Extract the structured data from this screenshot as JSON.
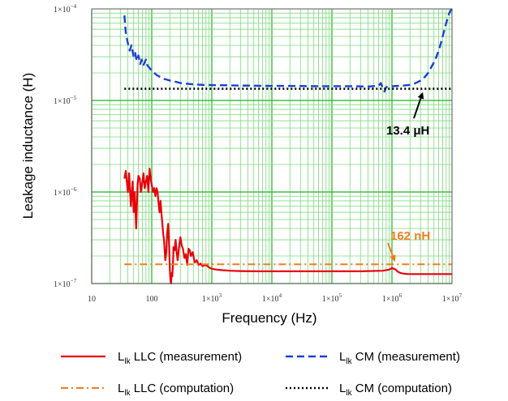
{
  "chart_data": {
    "type": "line",
    "x_scale": "log",
    "y_scale": "log",
    "xlabel": "Frequency (Hz)",
    "ylabel": "Leakage inductance (H)",
    "xlim": [
      10,
      10000000
    ],
    "ylim": [
      1e-07,
      0.0001
    ],
    "grid": true,
    "x_ticks": [
      {
        "value": 10,
        "label": "10",
        "mant": "",
        "exp": ""
      },
      {
        "value": 100,
        "label": "100",
        "mant": "",
        "exp": ""
      },
      {
        "value": 1000,
        "label": "",
        "mant": "1×10",
        "exp": "3"
      },
      {
        "value": 10000,
        "label": "",
        "mant": "1×10",
        "exp": "4"
      },
      {
        "value": 100000,
        "label": "",
        "mant": "1×10",
        "exp": "5"
      },
      {
        "value": 1000000,
        "label": "",
        "mant": "1×10",
        "exp": "6"
      },
      {
        "value": 10000000,
        "label": "",
        "mant": "1×10",
        "exp": "7"
      }
    ],
    "y_ticks": [
      {
        "value": 0.0001,
        "mant": "1×10",
        "exp": "−4"
      },
      {
        "value": 1e-05,
        "mant": "1×10",
        "exp": "−5"
      },
      {
        "value": 1e-06,
        "mant": "1×10",
        "exp": "−6"
      },
      {
        "value": 1e-07,
        "mant": "1×10",
        "exp": "−7"
      }
    ],
    "series": [
      {
        "name": "LLC (measurement)",
        "prefix": "L",
        "sub": "lk",
        "color": "#e8000b",
        "style": "solid",
        "x": [
          35,
          37,
          40,
          42,
          45,
          48,
          50,
          52,
          55,
          58,
          60,
          63,
          66,
          70,
          73,
          76,
          80,
          84,
          88,
          92,
          96,
          100,
          105,
          110,
          115,
          120,
          125,
          130,
          135,
          140,
          148,
          155,
          160,
          168,
          175,
          180,
          188,
          195,
          200,
          205,
          210,
          215,
          220,
          225,
          230,
          240,
          250,
          260,
          270,
          285,
          300,
          315,
          330,
          350,
          370,
          390,
          410,
          430,
          450,
          480,
          520,
          560,
          600,
          650,
          700,
          800,
          900,
          1000,
          1200,
          1500,
          2000,
          3000,
          5000,
          10000,
          30000,
          100000,
          300000,
          700000,
          900000,
          1000000,
          1150000,
          1250000,
          1400000,
          1600000,
          1800000,
          2000000,
          3000000,
          5000000,
          10000000
        ],
        "y": [
          1.4e-06,
          1.7e-06,
          1e-06,
          1.6e-06,
          7e-07,
          1.3e-06,
          6e-07,
          1e-06,
          4e-07,
          1.2e-06,
          1.5e-06,
          1.4e-06,
          1e-06,
          1.3e-06,
          1.6e-06,
          1.1e-06,
          1.3e-06,
          1.5e-06,
          1e-06,
          1.8e-06,
          1.4e-06,
          1.2e-06,
          1e-06,
          1.1e-06,
          9e-07,
          1.1e-06,
          1e-06,
          7.5e-07,
          6e-07,
          8e-07,
          5e-07,
          3.5e-07,
          3e-07,
          1.8e-07,
          2.2e-07,
          3.5e-07,
          4.5e-07,
          2.5e-07,
          1.4e-07,
          1.1e-07,
          1e-07,
          1.3e-07,
          1.2e-07,
          1.6e-07,
          2.5e-07,
          2.3e-07,
          3e-07,
          2.2e-07,
          1.8e-07,
          2.5e-07,
          3.2e-07,
          2.6e-07,
          2.4e-07,
          1.9e-07,
          2.1e-07,
          1.6e-07,
          2.4e-07,
          2.3e-07,
          2e-07,
          2.2e-07,
          1.7e-07,
          1.8e-07,
          1.6e-07,
          1.65e-07,
          1.55e-07,
          1.6e-07,
          1.5e-07,
          1.45e-07,
          1.42e-07,
          1.4e-07,
          1.38e-07,
          1.37e-07,
          1.36e-07,
          1.36e-07,
          1.36e-07,
          1.36e-07,
          1.36e-07,
          1.38e-07,
          1.42e-07,
          1.48e-07,
          1.42e-07,
          1.35e-07,
          1.3e-07,
          1.28e-07,
          1.27e-07,
          1.27e-07,
          1.27e-07,
          1.27e-07,
          1.27e-07
        ]
      },
      {
        "name": "CM (measurement)",
        "prefix": "L",
        "sub": "lk",
        "color": "#1a3fd6",
        "style": "dashed",
        "x": [
          35,
          37,
          40,
          43,
          46,
          50,
          53,
          56,
          60,
          64,
          68,
          72,
          76,
          80,
          85,
          90,
          95,
          100,
          110,
          120,
          140,
          160,
          200,
          250,
          300,
          400,
          500,
          700,
          1000,
          2000,
          5000,
          10000,
          20000,
          50000,
          100000,
          200000,
          400000,
          600000,
          650000,
          700000,
          750000,
          800000,
          900000,
          1000000,
          1500000,
          2000000,
          2500000,
          3000000,
          3500000,
          4000000,
          4500000,
          5000000,
          5500000,
          6000000,
          6500000,
          7000000,
          7500000,
          8000000,
          8500000,
          9000000,
          9500000,
          10000000
        ],
        "y": [
          8.5e-05,
          5.5e-05,
          4.2e-05,
          3.5e-05,
          4e-05,
          3e-05,
          3.3e-05,
          2.7e-05,
          3.1e-05,
          2.5e-05,
          2.8e-05,
          2.4e-05,
          2.6e-05,
          2.8e-05,
          2.4e-05,
          2.3e-05,
          2.2e-05,
          2.1e-05,
          2e-05,
          1.9e-05,
          1.8e-05,
          1.72e-05,
          1.65e-05,
          1.6e-05,
          1.55e-05,
          1.52e-05,
          1.5e-05,
          1.48e-05,
          1.47e-05,
          1.46e-05,
          1.45e-05,
          1.44e-05,
          1.44e-05,
          1.43e-05,
          1.43e-05,
          1.43e-05,
          1.42e-05,
          1.45e-05,
          1.55e-05,
          1.38e-05,
          1.25e-05,
          1.4e-05,
          1.42e-05,
          1.43e-05,
          1.45e-05,
          1.48e-05,
          1.55e-05,
          1.65e-05,
          1.8e-05,
          2e-05,
          2.3e-05,
          2.6e-05,
          3e-05,
          3.5e-05,
          4.2e-05,
          5e-05,
          6e-05,
          7e-05,
          8e-05,
          9e-05,
          9.6e-05,
          0.0001
        ]
      },
      {
        "name": "LLC (computation)",
        "prefix": "L",
        "sub": "lk",
        "color": "#f07c1c",
        "style": "dashdot",
        "x": [
          35,
          10000000
        ],
        "y": [
          1.62e-07,
          1.62e-07
        ]
      },
      {
        "name": "CM (computation)",
        "prefix": "L",
        "sub": "lk",
        "color": "#000000",
        "style": "dotted",
        "x": [
          35,
          10000000
        ],
        "y": [
          1.34e-05,
          1.34e-05
        ]
      }
    ],
    "annotations": [
      {
        "text": "13.4 μH",
        "color": "#000000",
        "arrow_to": {
          "x": 3200000,
          "y": 1.34e-05
        }
      },
      {
        "text": "162 nH",
        "color": "#f07c1c",
        "arrow_to": {
          "x": 1100000,
          "y": 1.62e-07
        }
      }
    ]
  },
  "colors": {
    "grid_major": "#1db51d",
    "grid_minor": "#7ddb7d",
    "frame": "#555555"
  }
}
